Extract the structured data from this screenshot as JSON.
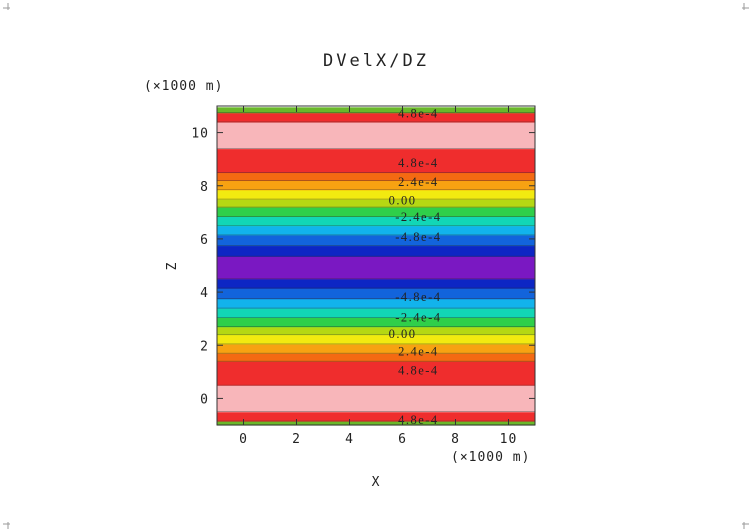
{
  "chart_data": {
    "type": "heatmap",
    "title": "DVelX/DZ",
    "xlabel": "X",
    "ylabel": "Z",
    "x_unit_label": "(×1000 m)",
    "y_unit_label": "(×1000 m)",
    "xlim": [
      -1,
      11
    ],
    "ylim": [
      -1,
      11
    ],
    "x_ticks": [
      "0",
      "2",
      "4",
      "6",
      "8",
      "10"
    ],
    "y_ticks": [
      "0",
      "2",
      "4",
      "6",
      "8",
      "10"
    ],
    "variation": "field varies with Z only; constant along X",
    "bands": [
      {
        "z_from": -1.0,
        "z_to": -0.85,
        "color": "#6ab82a"
      },
      {
        "z_from": -0.85,
        "z_to": -0.5,
        "color": "#ef2d2d"
      },
      {
        "z_from": -0.5,
        "z_to": 0.5,
        "color": "#f8b6ba"
      },
      {
        "z_from": 0.5,
        "z_to": 1.4,
        "color": "#ef2d2d"
      },
      {
        "z_from": 1.4,
        "z_to": 1.7,
        "color": "#f46a12"
      },
      {
        "z_from": 1.7,
        "z_to": 2.05,
        "color": "#f7a212"
      },
      {
        "z_from": 2.05,
        "z_to": 2.4,
        "color": "#f2ea10"
      },
      {
        "z_from": 2.4,
        "z_to": 2.7,
        "color": "#b5d813"
      },
      {
        "z_from": 2.7,
        "z_to": 3.05,
        "color": "#2fcf4a"
      },
      {
        "z_from": 3.05,
        "z_to": 3.4,
        "color": "#12d6b6"
      },
      {
        "z_from": 3.4,
        "z_to": 3.75,
        "color": "#12b3ec"
      },
      {
        "z_from": 3.75,
        "z_to": 4.15,
        "color": "#1264dc"
      },
      {
        "z_from": 4.15,
        "z_to": 4.5,
        "color": "#0d26c4"
      },
      {
        "z_from": 4.5,
        "z_to": 5.35,
        "color": "#7a18c2"
      },
      {
        "z_from": 5.35,
        "z_to": 5.75,
        "color": "#0d26c4"
      },
      {
        "z_from": 5.75,
        "z_to": 6.15,
        "color": "#1264dc"
      },
      {
        "z_from": 6.15,
        "z_to": 6.5,
        "color": "#12b3ec"
      },
      {
        "z_from": 6.5,
        "z_to": 6.85,
        "color": "#12d6b6"
      },
      {
        "z_from": 6.85,
        "z_to": 7.2,
        "color": "#2fcf4a"
      },
      {
        "z_from": 7.2,
        "z_to": 7.5,
        "color": "#b5d813"
      },
      {
        "z_from": 7.5,
        "z_to": 7.85,
        "color": "#f2ea10"
      },
      {
        "z_from": 7.85,
        "z_to": 8.2,
        "color": "#f7a212"
      },
      {
        "z_from": 8.2,
        "z_to": 8.5,
        "color": "#f46a12"
      },
      {
        "z_from": 8.5,
        "z_to": 9.4,
        "color": "#ef2d2d"
      },
      {
        "z_from": 9.4,
        "z_to": 10.4,
        "color": "#f8b6ba"
      },
      {
        "z_from": 10.4,
        "z_to": 10.75,
        "color": "#ef2d2d"
      },
      {
        "z_from": 10.75,
        "z_to": 10.95,
        "color": "#6ab82a"
      }
    ],
    "contour_labels": [
      {
        "text": "4.8e-4",
        "x": 6.6,
        "z": 10.72
      },
      {
        "text": "4.8e-4",
        "x": 6.6,
        "z": 8.85
      },
      {
        "text": "2.4e-4",
        "x": 6.6,
        "z": 8.15
      },
      {
        "text": "0.00",
        "x": 6.0,
        "z": 7.45
      },
      {
        "text": "-2.4e-4",
        "x": 6.6,
        "z": 6.82
      },
      {
        "text": "-4.8e-4",
        "x": 6.6,
        "z": 6.08
      },
      {
        "text": "-4.8e-4",
        "x": 6.6,
        "z": 3.82
      },
      {
        "text": "-2.4e-4",
        "x": 6.6,
        "z": 3.05
      },
      {
        "text": "0.00",
        "x": 6.0,
        "z": 2.43
      },
      {
        "text": "2.4e-4",
        "x": 6.6,
        "z": 1.77
      },
      {
        "text": "4.8e-4",
        "x": 6.6,
        "z": 1.05
      },
      {
        "text": "4.8e-4",
        "x": 6.6,
        "z": -0.82
      }
    ],
    "grid": false,
    "legend": "none"
  }
}
